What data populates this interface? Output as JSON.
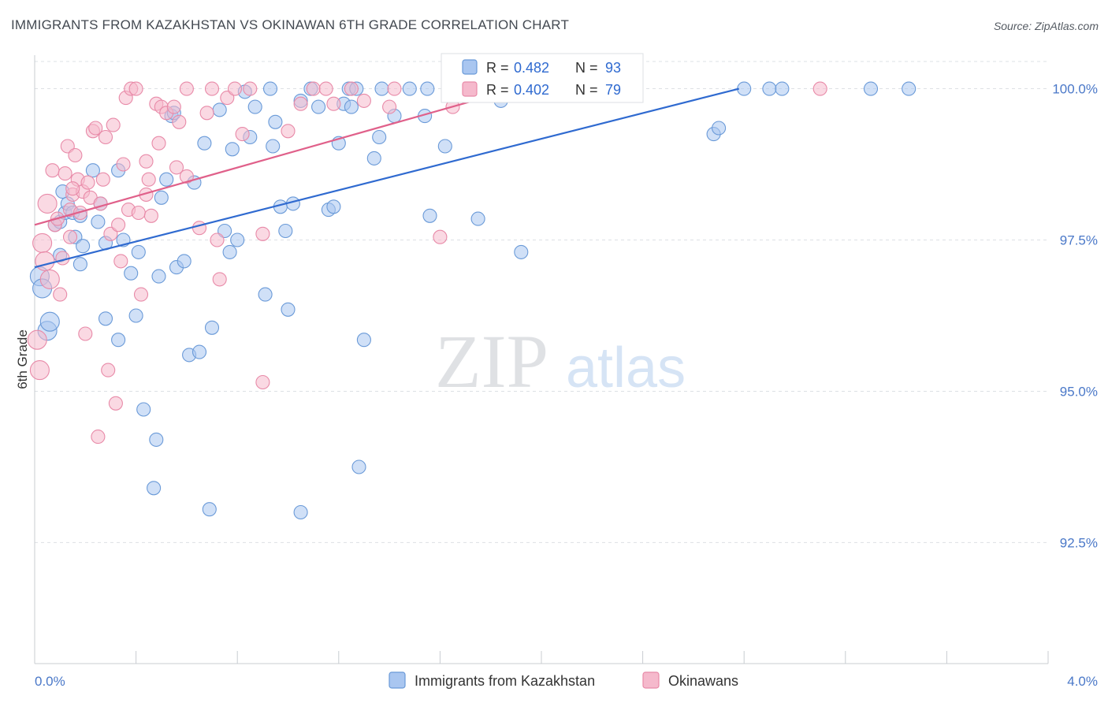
{
  "title": "IMMIGRANTS FROM KAZAKHSTAN VS OKINAWAN 6TH GRADE CORRELATION CHART",
  "source": "Source: ZipAtlas.com",
  "watermark": {
    "zip": "ZIP",
    "atlas": "atlas"
  },
  "colors": {
    "blue_fill": "#a9c6f0",
    "blue_stroke": "#6a9ad8",
    "blue_line": "#2f6ad0",
    "pink_fill": "#f5b9cc",
    "pink_stroke": "#e88aa8",
    "pink_line": "#e0608a",
    "grid": "#dde0e4",
    "tick_text": "#4a78c8"
  },
  "legend": {
    "items": [
      {
        "r_label": "R = ",
        "r_value": "0.482",
        "n_label": "N = ",
        "n_value": "93"
      },
      {
        "r_label": "R = ",
        "r_value": "0.402",
        "n_label": "N = ",
        "n_value": "79"
      }
    ]
  },
  "chart_data": {
    "type": "scatter",
    "xlabel": "",
    "ylabel": "6th Grade",
    "xlim": [
      0.0,
      4.0
    ],
    "ylim": [
      90.5,
      100.45
    ],
    "x_tick_labels": [
      "0.0%",
      "4.0%"
    ],
    "y_ticks": [
      {
        "value": 92.5,
        "label": "92.5%"
      },
      {
        "value": 95.0,
        "label": "95.0%"
      },
      {
        "value": 97.5,
        "label": "97.5%"
      },
      {
        "value": 100.0,
        "label": "100.0%"
      }
    ],
    "grid": true,
    "legend_position": "top-center",
    "series": [
      {
        "name": "Immigrants from Kazakhstan",
        "color": "blue",
        "trend": {
          "x": [
            0.0,
            2.78
          ],
          "y": [
            97.05,
            100.0
          ]
        },
        "points": [
          [
            0.02,
            96.9
          ],
          [
            0.03,
            96.7
          ],
          [
            0.05,
            96.0
          ],
          [
            0.06,
            96.15
          ],
          [
            0.08,
            97.75
          ],
          [
            0.1,
            97.8
          ],
          [
            0.1,
            97.25
          ],
          [
            0.11,
            98.3
          ],
          [
            0.12,
            97.95
          ],
          [
            0.13,
            98.1
          ],
          [
            0.15,
            97.95
          ],
          [
            0.16,
            97.55
          ],
          [
            0.18,
            97.1
          ],
          [
            0.18,
            97.9
          ],
          [
            0.19,
            97.4
          ],
          [
            0.23,
            98.65
          ],
          [
            0.25,
            97.8
          ],
          [
            0.26,
            98.1
          ],
          [
            0.28,
            97.45
          ],
          [
            0.28,
            96.2
          ],
          [
            0.33,
            95.85
          ],
          [
            0.33,
            98.65
          ],
          [
            0.35,
            97.5
          ],
          [
            0.38,
            96.95
          ],
          [
            0.4,
            96.25
          ],
          [
            0.41,
            97.3
          ],
          [
            0.43,
            94.7
          ],
          [
            0.47,
            93.4
          ],
          [
            0.48,
            94.2
          ],
          [
            0.49,
            96.9
          ],
          [
            0.5,
            98.2
          ],
          [
            0.52,
            98.5
          ],
          [
            0.54,
            99.55
          ],
          [
            0.55,
            99.6
          ],
          [
            0.56,
            97.05
          ],
          [
            0.59,
            97.15
          ],
          [
            0.61,
            95.6
          ],
          [
            0.63,
            98.45
          ],
          [
            0.65,
            95.65
          ],
          [
            0.67,
            99.1
          ],
          [
            0.69,
            93.05
          ],
          [
            0.7,
            96.05
          ],
          [
            0.73,
            99.65
          ],
          [
            0.75,
            97.65
          ],
          [
            0.77,
            97.3
          ],
          [
            0.78,
            99.0
          ],
          [
            0.8,
            97.5
          ],
          [
            0.83,
            99.95
          ],
          [
            0.85,
            99.2
          ],
          [
            0.87,
            99.7
          ],
          [
            0.91,
            96.6
          ],
          [
            0.93,
            100.0
          ],
          [
            0.94,
            99.05
          ],
          [
            0.95,
            99.45
          ],
          [
            0.97,
            98.05
          ],
          [
            0.99,
            97.65
          ],
          [
            1.0,
            96.35
          ],
          [
            1.02,
            98.1
          ],
          [
            1.05,
            99.8
          ],
          [
            1.05,
            93.0
          ],
          [
            1.09,
            100.0
          ],
          [
            1.12,
            99.7
          ],
          [
            1.16,
            98.0
          ],
          [
            1.18,
            98.05
          ],
          [
            1.2,
            99.1
          ],
          [
            1.22,
            99.75
          ],
          [
            1.24,
            100.0
          ],
          [
            1.25,
            99.7
          ],
          [
            1.27,
            100.0
          ],
          [
            1.28,
            93.75
          ],
          [
            1.3,
            95.85
          ],
          [
            1.34,
            98.85
          ],
          [
            1.36,
            99.2
          ],
          [
            1.37,
            100.0
          ],
          [
            1.42,
            99.55
          ],
          [
            1.48,
            100.0
          ],
          [
            1.54,
            99.55
          ],
          [
            1.55,
            100.0
          ],
          [
            1.56,
            97.9
          ],
          [
            1.62,
            99.05
          ],
          [
            1.75,
            97.85
          ],
          [
            1.8,
            100.0
          ],
          [
            1.84,
            99.8
          ],
          [
            1.9,
            100.0
          ],
          [
            1.92,
            97.3
          ],
          [
            2.15,
            100.0
          ],
          [
            2.68,
            99.25
          ],
          [
            2.7,
            99.35
          ],
          [
            2.8,
            100.0
          ],
          [
            2.9,
            100.0
          ],
          [
            2.95,
            100.0
          ],
          [
            3.3,
            100.0
          ],
          [
            3.45,
            100.0
          ]
        ]
      },
      {
        "name": "Okinawans",
        "color": "pink",
        "trend": {
          "x": [
            0.0,
            1.9
          ],
          "y": [
            97.75,
            100.0
          ]
        },
        "points": [
          [
            0.01,
            95.85
          ],
          [
            0.02,
            95.35
          ],
          [
            0.03,
            97.45
          ],
          [
            0.04,
            97.15
          ],
          [
            0.05,
            98.1
          ],
          [
            0.06,
            96.85
          ],
          [
            0.07,
            98.65
          ],
          [
            0.08,
            97.75
          ],
          [
            0.1,
            96.6
          ],
          [
            0.11,
            97.2
          ],
          [
            0.12,
            98.6
          ],
          [
            0.13,
            99.05
          ],
          [
            0.14,
            98.0
          ],
          [
            0.14,
            97.55
          ],
          [
            0.15,
            98.25
          ],
          [
            0.16,
            98.9
          ],
          [
            0.17,
            98.5
          ],
          [
            0.18,
            97.95
          ],
          [
            0.19,
            98.3
          ],
          [
            0.2,
            95.95
          ],
          [
            0.21,
            98.45
          ],
          [
            0.22,
            98.2
          ],
          [
            0.23,
            99.3
          ],
          [
            0.24,
            99.35
          ],
          [
            0.26,
            98.1
          ],
          [
            0.27,
            98.5
          ],
          [
            0.28,
            99.2
          ],
          [
            0.29,
            95.35
          ],
          [
            0.3,
            97.6
          ],
          [
            0.31,
            99.4
          ],
          [
            0.32,
            94.8
          ],
          [
            0.34,
            97.15
          ],
          [
            0.35,
            98.75
          ],
          [
            0.36,
            99.85
          ],
          [
            0.37,
            98.0
          ],
          [
            0.38,
            100.0
          ],
          [
            0.4,
            100.0
          ],
          [
            0.41,
            97.95
          ],
          [
            0.42,
            96.6
          ],
          [
            0.44,
            98.8
          ],
          [
            0.45,
            98.5
          ],
          [
            0.46,
            97.9
          ],
          [
            0.48,
            99.75
          ],
          [
            0.49,
            99.1
          ],
          [
            0.5,
            99.7
          ],
          [
            0.52,
            99.6
          ],
          [
            0.55,
            99.7
          ],
          [
            0.56,
            98.7
          ],
          [
            0.57,
            99.45
          ],
          [
            0.6,
            100.0
          ],
          [
            0.65,
            97.7
          ],
          [
            0.7,
            100.0
          ],
          [
            0.72,
            97.5
          ],
          [
            0.73,
            96.85
          ],
          [
            0.76,
            99.85
          ],
          [
            0.79,
            100.0
          ],
          [
            0.82,
            99.25
          ],
          [
            0.85,
            100.0
          ],
          [
            0.9,
            97.6
          ],
          [
            0.9,
            95.15
          ],
          [
            1.05,
            99.75
          ],
          [
            1.1,
            100.0
          ],
          [
            1.15,
            100.0
          ],
          [
            1.25,
            100.0
          ],
          [
            1.3,
            99.8
          ],
          [
            1.4,
            99.7
          ],
          [
            1.42,
            100.0
          ],
          [
            1.6,
            97.55
          ],
          [
            1.65,
            99.7
          ],
          [
            3.1,
            100.0
          ],
          [
            0.09,
            97.85
          ],
          [
            0.25,
            94.25
          ],
          [
            0.33,
            97.75
          ],
          [
            0.44,
            98.25
          ],
          [
            0.6,
            98.55
          ],
          [
            0.68,
            99.6
          ],
          [
            1.0,
            99.3
          ],
          [
            1.18,
            99.75
          ],
          [
            0.15,
            98.35
          ]
        ]
      }
    ]
  }
}
